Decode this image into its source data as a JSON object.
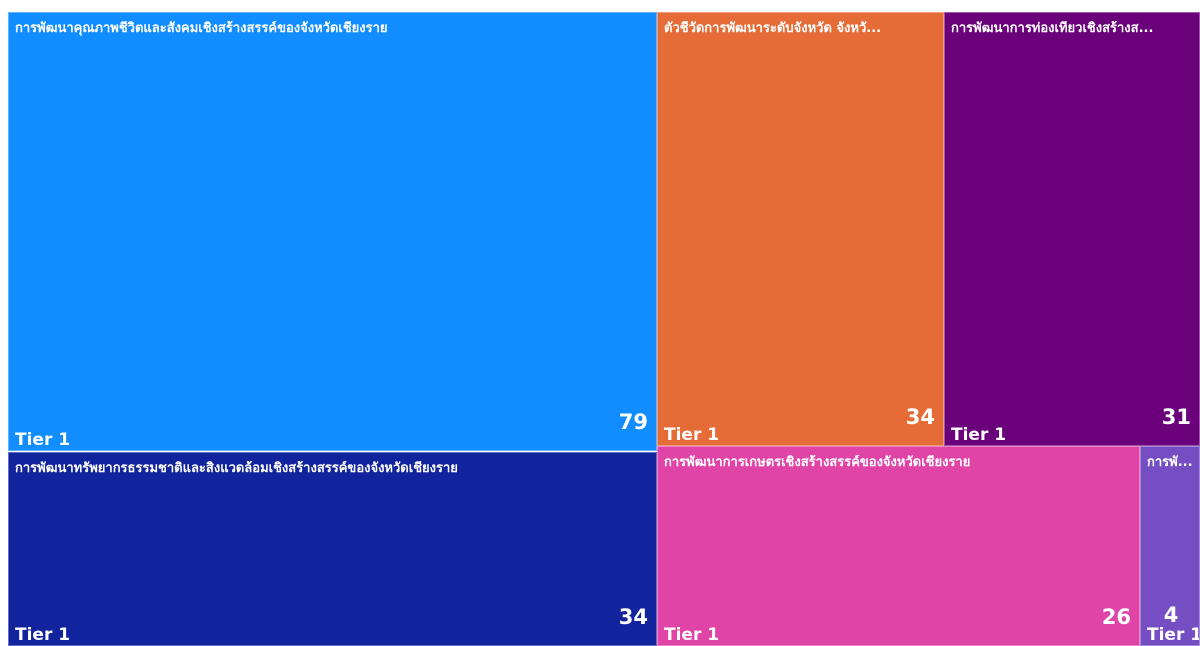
{
  "chart_data": {
    "type": "treemap",
    "value_label_color": "#ffffff",
    "items": [
      {
        "name": "การพัฒนาคุณภาพชีวิตและสังคมเชิงสร้างสรรค์ของจังหวัดเชียงราย",
        "value": 79,
        "tier": "Tier 1",
        "color": "#118DFF"
      },
      {
        "name": "การพัฒนาทรัพยากรธรรมชาติและสิ่งแวดล้อมเชิงสร้างสรรค์ของจังหวัดเชียงราย",
        "value": 34,
        "tier": "Tier 1",
        "color": "#12239E"
      },
      {
        "name": "ตัวชี้วัดการพัฒนาระดับจังหวัด จังหวั...",
        "value": 34,
        "tier": "Tier 1",
        "color": "#E66C37"
      },
      {
        "name": "การพัฒนาการท่องเที่ยวเชิงสร้างส...",
        "value": 31,
        "tier": "Tier 1",
        "color": "#6B007B"
      },
      {
        "name": "การพัฒนาการเกษตรเชิงสร้างสรรค์ของจังหวัดเชียงราย",
        "value": 26,
        "tier": "Tier 1",
        "color": "#E044A7"
      },
      {
        "name": "การพั...",
        "value": 4,
        "tier": "Tier 1",
        "color": "#744EC2"
      }
    ]
  }
}
